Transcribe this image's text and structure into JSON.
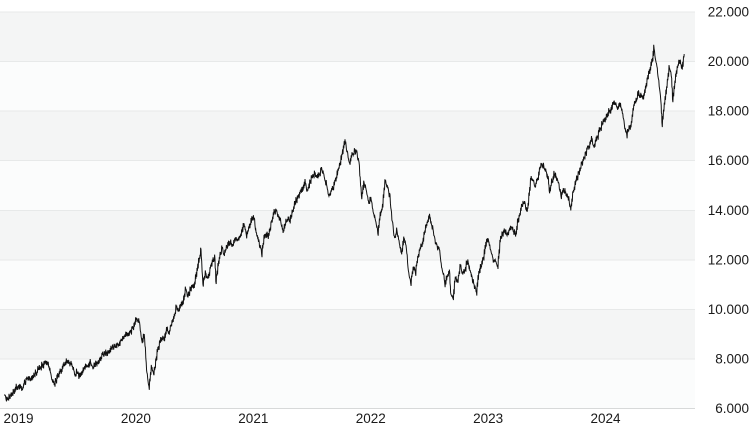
{
  "page": {
    "background_color": "#ffffff",
    "description": "Index price history chart"
  },
  "chart_data": {
    "type": "line",
    "title": "",
    "xlabel": "",
    "ylabel": "",
    "legend": "none",
    "grid": "horizontal",
    "x_axis": {
      "tick_labels": [
        "2019",
        "2020",
        "2021",
        "2022",
        "2023",
        "2024"
      ],
      "tick_positions_years": [
        0,
        1,
        2,
        3,
        4,
        5
      ],
      "range_years": [
        0,
        5.79
      ]
    },
    "y_axis": {
      "side": "right",
      "tick_labels": [
        "22.000",
        "20.000",
        "18.000",
        "16.000",
        "14.000",
        "12.000",
        "10.000",
        "8.000",
        "6.000"
      ],
      "tick_values": [
        22000,
        20000,
        18000,
        16000,
        14000,
        12000,
        10000,
        8000,
        6000
      ],
      "min": 6000,
      "max": 22000
    },
    "style": {
      "line_color": "#111111",
      "line_width": 1,
      "band_color_shaded": "#f4f5f5",
      "band_color_light": "#fbfcfc",
      "gridline_color": "#e7e9e9",
      "baseline_color": "#d7d9d9",
      "axis_label_color": "#1a1a1a",
      "axis_font_size": 13.5,
      "noise_amplitude": 90,
      "bar_spread": 80,
      "noise_seed": 7
    },
    "series": [
      {
        "name": "price",
        "color": "#111111",
        "points": [
          [
            0.0,
            6550
          ],
          [
            0.02,
            6340
          ],
          [
            0.05,
            6560
          ],
          [
            0.08,
            6700
          ],
          [
            0.1,
            6820
          ],
          [
            0.13,
            6880
          ],
          [
            0.15,
            6800
          ],
          [
            0.17,
            7050
          ],
          [
            0.19,
            7160
          ],
          [
            0.21,
            7250
          ],
          [
            0.23,
            7180
          ],
          [
            0.25,
            7330
          ],
          [
            0.27,
            7440
          ],
          [
            0.29,
            7600
          ],
          [
            0.31,
            7680
          ],
          [
            0.33,
            7780
          ],
          [
            0.36,
            7850
          ],
          [
            0.38,
            7600
          ],
          [
            0.4,
            7280
          ],
          [
            0.42,
            6980
          ],
          [
            0.44,
            7150
          ],
          [
            0.46,
            7350
          ],
          [
            0.48,
            7550
          ],
          [
            0.5,
            7750
          ],
          [
            0.52,
            7850
          ],
          [
            0.54,
            7930
          ],
          [
            0.56,
            7820
          ],
          [
            0.58,
            7700
          ],
          [
            0.6,
            7380
          ],
          [
            0.62,
            7480
          ],
          [
            0.63,
            7300
          ],
          [
            0.65,
            7420
          ],
          [
            0.67,
            7600
          ],
          [
            0.69,
            7700
          ],
          [
            0.71,
            7650
          ],
          [
            0.73,
            7850
          ],
          [
            0.75,
            7680
          ],
          [
            0.77,
            7760
          ],
          [
            0.79,
            7900
          ],
          [
            0.81,
            8010
          ],
          [
            0.83,
            8120
          ],
          [
            0.85,
            8200
          ],
          [
            0.88,
            8320
          ],
          [
            0.9,
            8400
          ],
          [
            0.92,
            8450
          ],
          [
            0.94,
            8500
          ],
          [
            0.96,
            8550
          ],
          [
            0.98,
            8650
          ],
          [
            1.0,
            8730
          ],
          [
            1.02,
            8900
          ],
          [
            1.04,
            9090
          ],
          [
            1.06,
            8950
          ],
          [
            1.09,
            9250
          ],
          [
            1.11,
            9450
          ],
          [
            1.13,
            9620
          ],
          [
            1.15,
            9440
          ],
          [
            1.17,
            8640
          ],
          [
            1.19,
            8940
          ],
          [
            1.21,
            7550
          ],
          [
            1.23,
            6790
          ],
          [
            1.25,
            7600
          ],
          [
            1.27,
            7350
          ],
          [
            1.3,
            8250
          ],
          [
            1.32,
            8650
          ],
          [
            1.33,
            8780
          ],
          [
            1.36,
            8850
          ],
          [
            1.38,
            9250
          ],
          [
            1.4,
            9050
          ],
          [
            1.42,
            9350
          ],
          [
            1.44,
            9650
          ],
          [
            1.46,
            10050
          ],
          [
            1.48,
            9900
          ],
          [
            1.5,
            10150
          ],
          [
            1.52,
            10250
          ],
          [
            1.54,
            10850
          ],
          [
            1.56,
            10550
          ],
          [
            1.58,
            10750
          ],
          [
            1.6,
            10900
          ],
          [
            1.62,
            11100
          ],
          [
            1.64,
            11600
          ],
          [
            1.66,
            12100
          ],
          [
            1.67,
            12420
          ],
          [
            1.69,
            11050
          ],
          [
            1.71,
            11500
          ],
          [
            1.73,
            11200
          ],
          [
            1.75,
            11650
          ],
          [
            1.77,
            11900
          ],
          [
            1.79,
            12050
          ],
          [
            1.8,
            11150
          ],
          [
            1.83,
            12150
          ],
          [
            1.85,
            12450
          ],
          [
            1.87,
            12250
          ],
          [
            1.89,
            12500
          ],
          [
            1.92,
            12700
          ],
          [
            1.94,
            12650
          ],
          [
            1.96,
            12750
          ],
          [
            1.98,
            12800
          ],
          [
            2.0,
            12870
          ],
          [
            2.02,
            13200
          ],
          [
            2.04,
            13450
          ],
          [
            2.06,
            12950
          ],
          [
            2.08,
            13350
          ],
          [
            2.1,
            13600
          ],
          [
            2.12,
            13800
          ],
          [
            2.14,
            13150
          ],
          [
            2.16,
            12800
          ],
          [
            2.19,
            12250
          ],
          [
            2.21,
            12900
          ],
          [
            2.23,
            13050
          ],
          [
            2.25,
            12950
          ],
          [
            2.27,
            13500
          ],
          [
            2.29,
            13850
          ],
          [
            2.31,
            14000
          ],
          [
            2.33,
            13800
          ],
          [
            2.35,
            13550
          ],
          [
            2.37,
            13100
          ],
          [
            2.39,
            13500
          ],
          [
            2.41,
            13700
          ],
          [
            2.43,
            13550
          ],
          [
            2.45,
            13900
          ],
          [
            2.47,
            14200
          ],
          [
            2.5,
            14550
          ],
          [
            2.52,
            14750
          ],
          [
            2.54,
            14900
          ],
          [
            2.56,
            15100
          ],
          [
            2.58,
            14750
          ],
          [
            2.6,
            15100
          ],
          [
            2.62,
            15350
          ],
          [
            2.64,
            15500
          ],
          [
            2.66,
            15380
          ],
          [
            2.68,
            15450
          ],
          [
            2.7,
            15700
          ],
          [
            2.72,
            15350
          ],
          [
            2.74,
            15050
          ],
          [
            2.76,
            14600
          ],
          [
            2.78,
            14750
          ],
          [
            2.8,
            14900
          ],
          [
            2.82,
            15250
          ],
          [
            2.84,
            15550
          ],
          [
            2.86,
            15950
          ],
          [
            2.88,
            16450
          ],
          [
            2.9,
            16760
          ],
          [
            2.92,
            16300
          ],
          [
            2.94,
            15900
          ],
          [
            2.96,
            16250
          ],
          [
            2.98,
            16400
          ],
          [
            3.0,
            16320
          ],
          [
            3.02,
            15800
          ],
          [
            3.04,
            14500
          ],
          [
            3.06,
            15100
          ],
          [
            3.08,
            14800
          ],
          [
            3.1,
            14250
          ],
          [
            3.12,
            14450
          ],
          [
            3.14,
            13900
          ],
          [
            3.16,
            13550
          ],
          [
            3.18,
            13100
          ],
          [
            3.2,
            13800
          ],
          [
            3.22,
            14200
          ],
          [
            3.24,
            15250
          ],
          [
            3.26,
            14900
          ],
          [
            3.28,
            14600
          ],
          [
            3.3,
            13600
          ],
          [
            3.32,
            12850
          ],
          [
            3.34,
            13150
          ],
          [
            3.36,
            12700
          ],
          [
            3.38,
            12300
          ],
          [
            3.4,
            12850
          ],
          [
            3.42,
            12500
          ],
          [
            3.44,
            11500
          ],
          [
            3.46,
            11050
          ],
          [
            3.48,
            11650
          ],
          [
            3.5,
            11500
          ],
          [
            3.52,
            12150
          ],
          [
            3.54,
            12450
          ],
          [
            3.56,
            12700
          ],
          [
            3.58,
            13150
          ],
          [
            3.6,
            13600
          ],
          [
            3.62,
            13700
          ],
          [
            3.64,
            13400
          ],
          [
            3.66,
            12900
          ],
          [
            3.68,
            12550
          ],
          [
            3.7,
            12400
          ],
          [
            3.72,
            11850
          ],
          [
            3.74,
            11350
          ],
          [
            3.75,
            11050
          ],
          [
            3.77,
            11300
          ],
          [
            3.79,
            11500
          ],
          [
            3.8,
            10650
          ],
          [
            3.82,
            10480
          ],
          [
            3.84,
            11350
          ],
          [
            3.86,
            11100
          ],
          [
            3.88,
            11700
          ],
          [
            3.9,
            11500
          ],
          [
            3.92,
            11550
          ],
          [
            3.94,
            11950
          ],
          [
            3.96,
            11700
          ],
          [
            3.98,
            11250
          ],
          [
            4.0,
            10940
          ],
          [
            4.02,
            10700
          ],
          [
            4.04,
            11450
          ],
          [
            4.06,
            11800
          ],
          [
            4.08,
            12100
          ],
          [
            4.1,
            12650
          ],
          [
            4.12,
            12880
          ],
          [
            4.14,
            12400
          ],
          [
            4.16,
            12050
          ],
          [
            4.18,
            11950
          ],
          [
            4.2,
            11700
          ],
          [
            4.22,
            12750
          ],
          [
            4.25,
            13180
          ],
          [
            4.27,
            13050
          ],
          [
            4.29,
            13100
          ],
          [
            4.31,
            13250
          ],
          [
            4.33,
            13240
          ],
          [
            4.35,
            13000
          ],
          [
            4.37,
            13550
          ],
          [
            4.39,
            13850
          ],
          [
            4.41,
            14250
          ],
          [
            4.43,
            14300
          ],
          [
            4.45,
            13950
          ],
          [
            4.46,
            14300
          ],
          [
            4.48,
            15280
          ],
          [
            4.5,
            15180
          ],
          [
            4.52,
            14950
          ],
          [
            4.55,
            15450
          ],
          [
            4.57,
            15930
          ],
          [
            4.59,
            15760
          ],
          [
            4.61,
            15550
          ],
          [
            4.63,
            15250
          ],
          [
            4.64,
            14700
          ],
          [
            4.66,
            15100
          ],
          [
            4.68,
            15500
          ],
          [
            4.7,
            15300
          ],
          [
            4.72,
            15050
          ],
          [
            4.74,
            14560
          ],
          [
            4.76,
            14850
          ],
          [
            4.78,
            14700
          ],
          [
            4.8,
            14550
          ],
          [
            4.82,
            14060
          ],
          [
            4.84,
            14650
          ],
          [
            4.86,
            15100
          ],
          [
            4.88,
            15350
          ],
          [
            4.9,
            15700
          ],
          [
            4.92,
            15950
          ],
          [
            4.94,
            16150
          ],
          [
            4.96,
            16450
          ],
          [
            4.98,
            16550
          ],
          [
            5.0,
            16820
          ],
          [
            5.02,
            16550
          ],
          [
            5.04,
            16840
          ],
          [
            5.06,
            17100
          ],
          [
            5.08,
            17350
          ],
          [
            5.1,
            17600
          ],
          [
            5.12,
            17680
          ],
          [
            5.14,
            17950
          ],
          [
            5.16,
            18050
          ],
          [
            5.18,
            18250
          ],
          [
            5.2,
            18350
          ],
          [
            5.22,
            18150
          ],
          [
            5.24,
            18250
          ],
          [
            5.26,
            18000
          ],
          [
            5.28,
            17350
          ],
          [
            5.3,
            17050
          ],
          [
            5.32,
            17300
          ],
          [
            5.34,
            17550
          ],
          [
            5.36,
            18250
          ],
          [
            5.38,
            18500
          ],
          [
            5.4,
            18700
          ],
          [
            5.42,
            18600
          ],
          [
            5.44,
            18550
          ],
          [
            5.46,
            19000
          ],
          [
            5.48,
            19400
          ],
          [
            5.5,
            19680
          ],
          [
            5.52,
            20100
          ],
          [
            5.53,
            20650
          ],
          [
            5.55,
            19900
          ],
          [
            5.57,
            19350
          ],
          [
            5.59,
            18350
          ],
          [
            5.6,
            17480
          ],
          [
            5.62,
            18350
          ],
          [
            5.64,
            19050
          ],
          [
            5.66,
            19720
          ],
          [
            5.68,
            19400
          ],
          [
            5.69,
            18450
          ],
          [
            5.71,
            19200
          ],
          [
            5.73,
            19820
          ],
          [
            5.75,
            20050
          ],
          [
            5.77,
            19750
          ],
          [
            5.79,
            20300
          ]
        ]
      }
    ]
  }
}
